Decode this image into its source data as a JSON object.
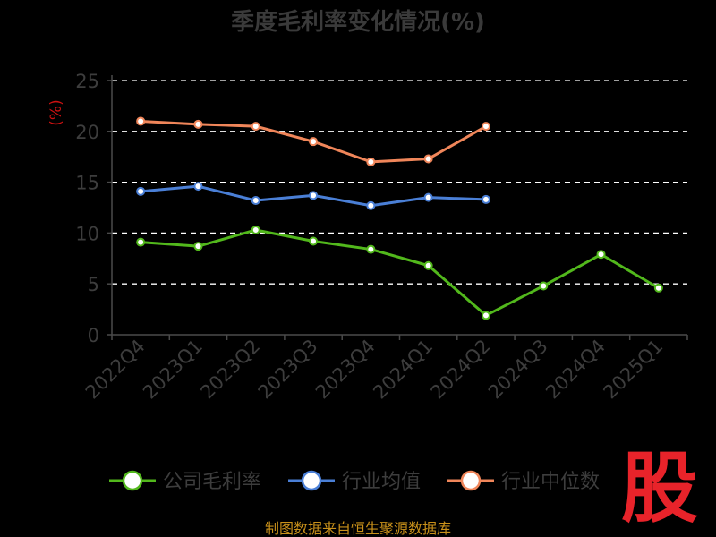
{
  "chart_data": {
    "type": "line",
    "title": "季度毛利率变化情况(%)",
    "ylabel": "(%)",
    "xlabel": "",
    "categories": [
      "2022Q4",
      "2023Q1",
      "2023Q2",
      "2023Q3",
      "2023Q4",
      "2024Q1",
      "2024Q2",
      "2024Q3",
      "2024Q4",
      "2025Q1"
    ],
    "ylim": [
      0,
      25
    ],
    "yticks": [
      0,
      5,
      10,
      15,
      20,
      25
    ],
    "grid": true,
    "legend_position": "bottom",
    "series": [
      {
        "name": "公司毛利率",
        "color": "#52b81c",
        "values": [
          9.1,
          8.7,
          10.3,
          9.2,
          8.4,
          6.8,
          1.9,
          4.8,
          7.9,
          4.6
        ]
      },
      {
        "name": "行业均值",
        "color": "#4a7fd6",
        "values": [
          14.1,
          14.6,
          13.2,
          13.7,
          12.7,
          13.5,
          13.3,
          null,
          null,
          null
        ]
      },
      {
        "name": "行业中位数",
        "color": "#f0865a",
        "values": [
          21.0,
          20.7,
          20.5,
          19.0,
          17.0,
          17.3,
          20.5,
          null,
          null,
          null
        ]
      }
    ]
  },
  "footer": {
    "source": "制图数据来自恒生聚源数据库",
    "logo": "股"
  }
}
